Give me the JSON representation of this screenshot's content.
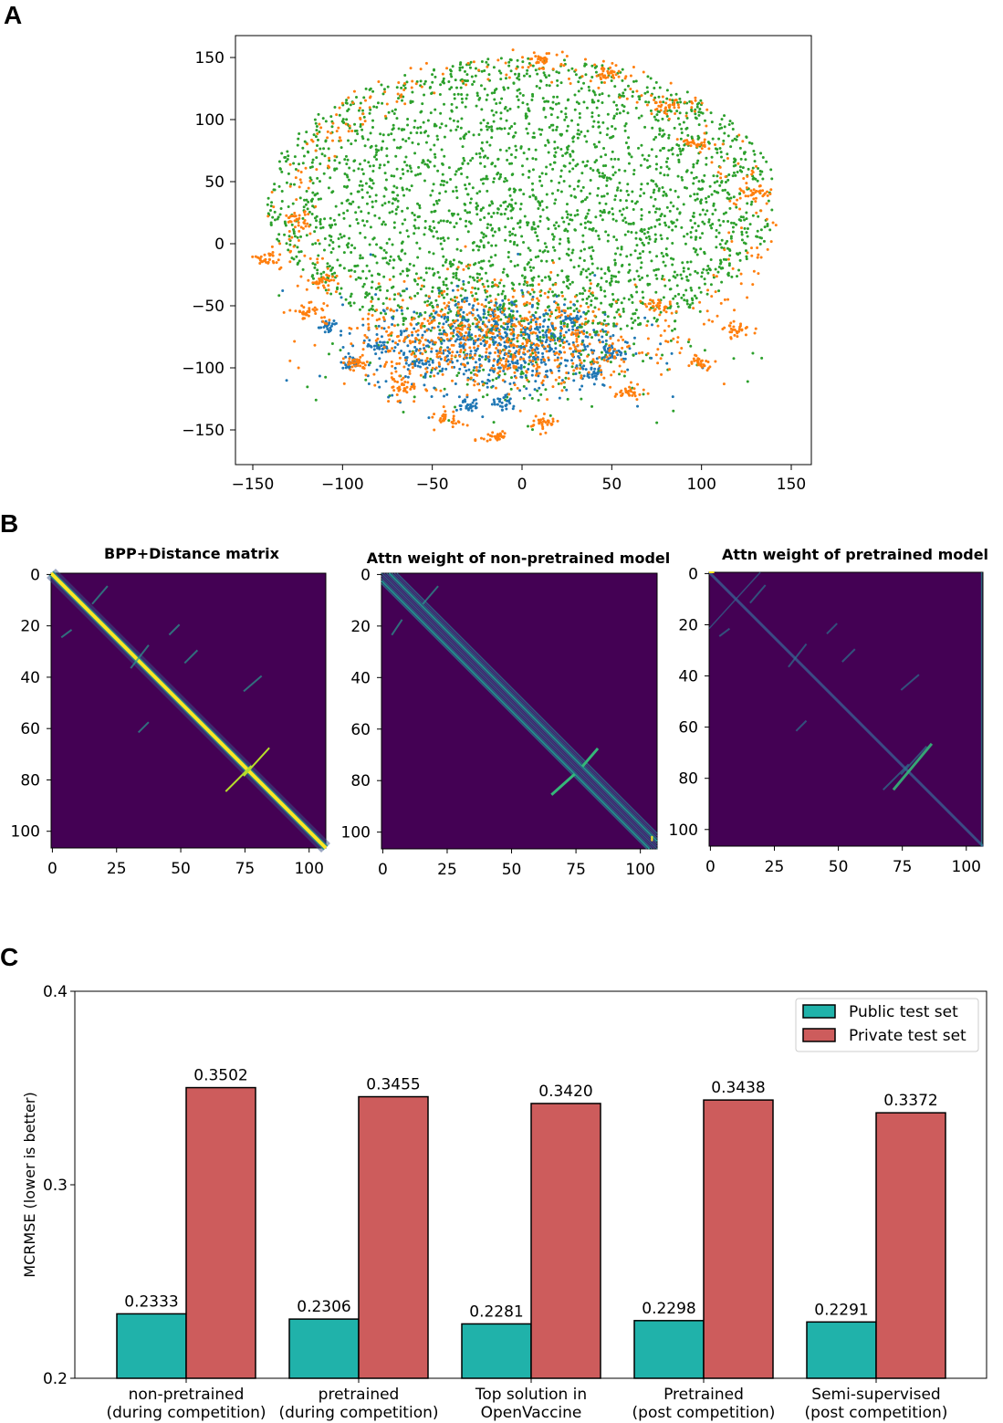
{
  "panels": {
    "a": "A",
    "b": "B",
    "c": "C"
  },
  "chart_data": [
    {
      "type": "scatter",
      "panel": "A",
      "xlim": [
        -161,
        161
      ],
      "ylim": [
        -167,
        168
      ],
      "xticks": [
        "−150",
        "−100",
        "−50",
        "0",
        "50",
        "100",
        "150"
      ],
      "xtick_values": [
        -150,
        -100,
        -50,
        0,
        50,
        100,
        150
      ],
      "yticks": [
        "150",
        "100",
        "50",
        "0",
        "−50",
        "−100",
        "−150"
      ],
      "ytick_values": [
        150,
        100,
        50,
        0,
        -50,
        -100,
        -150
      ],
      "series": [
        {
          "color": "#2ca02c"
        },
        {
          "color": "#ff7f0e"
        },
        {
          "color": "#1f77b4"
        }
      ]
    },
    {
      "type": "heatmap",
      "panel": "B",
      "size": 107,
      "colormap": "viridis",
      "xticks": [
        "0",
        "25",
        "50",
        "75",
        "100"
      ],
      "yticks": [
        "0",
        "20",
        "40",
        "60",
        "80",
        "100"
      ],
      "maps": [
        {
          "title": "BPP+Distance matrix"
        },
        {
          "title": "Attn weight of non-pretrained model"
        },
        {
          "title": "Attn weight of pretrained model"
        }
      ]
    },
    {
      "type": "bar",
      "panel": "C",
      "categories": [
        [
          "non-pretrained",
          "(during competition)"
        ],
        [
          "pretrained",
          "(during competition)"
        ],
        [
          "Top solution in",
          "OpenVaccine"
        ],
        [
          "Pretrained",
          "(post competition)"
        ],
        [
          "Semi-supervised",
          "(post competition)"
        ]
      ],
      "series": [
        {
          "name": "Public test set",
          "color": "#20b2aa",
          "values": [
            0.2333,
            0.2306,
            0.2281,
            0.2298,
            0.2291
          ],
          "labels": [
            "0.2333",
            "0.2306",
            "0.2281",
            "0.2298",
            "0.2291"
          ]
        },
        {
          "name": "Private test set",
          "color": "#cd5c5c",
          "values": [
            0.3502,
            0.3455,
            0.342,
            0.3438,
            0.3372
          ],
          "labels": [
            "0.3502",
            "0.3455",
            "0.3420",
            "0.3438",
            "0.3372"
          ]
        }
      ],
      "ylabel": "MCRMSE (lower is better)",
      "ylim": [
        0.2,
        0.4
      ],
      "yticks": [
        "0.2",
        "0.3",
        "0.4"
      ],
      "legend": "top-right"
    }
  ]
}
